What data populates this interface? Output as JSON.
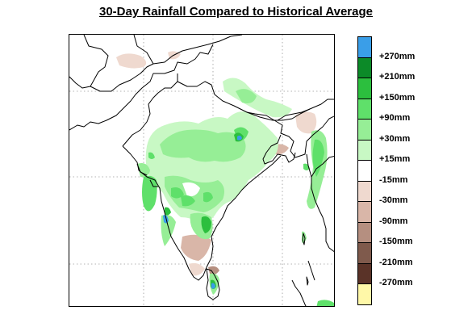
{
  "title": "30-Day Rainfall Compared to Historical Average",
  "legend": [
    {
      "label": "+270mm",
      "color": "#3a9ee8"
    },
    {
      "label": "+210mm",
      "color": "#0c8a28"
    },
    {
      "label": "+150mm",
      "color": "#2cbf3e"
    },
    {
      "label": "+90mm",
      "color": "#5fe06a"
    },
    {
      "label": "+30mm",
      "color": "#96ee96"
    },
    {
      "label": "+15mm",
      "color": "#c8f8c4"
    },
    {
      "label": "-15mm",
      "color": "#ffffff"
    },
    {
      "label": "-30mm",
      "color": "#efd9cf"
    },
    {
      "label": "-90mm",
      "color": "#d9b6a8"
    },
    {
      "label": "-150mm",
      "color": "#b58f80"
    },
    {
      "label": "-210mm",
      "color": "#7f5a4c"
    },
    {
      "label": "-270mm",
      "color": "#5a3328"
    },
    {
      "label": "",
      "color": "#fff8a8"
    }
  ]
}
